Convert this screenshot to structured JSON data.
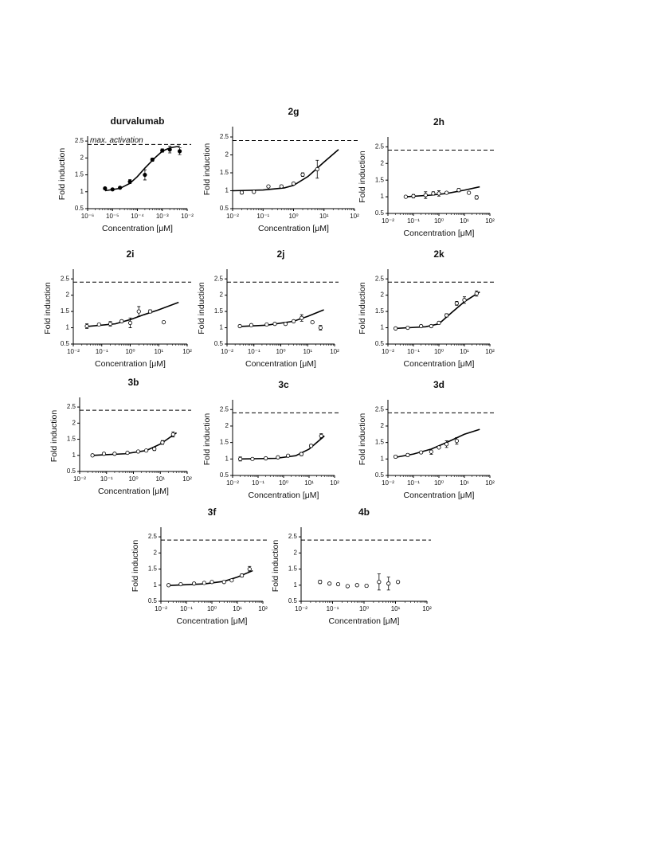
{
  "chart_data": [
    {
      "type": "scatter",
      "title": "durvalumab",
      "x_label": "Concentration [μM]",
      "y_label": "Fold induction",
      "annotation": "max. activation",
      "x_log": true,
      "marker_fill": "filled",
      "reference_line": 2.4,
      "xlim": [
        1e-06,
        0.01
      ],
      "xticks": [
        {
          "value": 1e-06,
          "label": "10⁻⁶"
        },
        {
          "value": 1e-05,
          "label": "10⁻⁵"
        },
        {
          "value": 0.0001,
          "label": "10⁻⁴"
        },
        {
          "value": 0.001,
          "label": "10⁻³"
        },
        {
          "value": 0.01,
          "label": "10⁻²"
        }
      ],
      "ylim": [
        0.5,
        2.55
      ],
      "yticks": [
        0.5,
        1,
        1.5,
        2,
        2.5
      ],
      "points": {
        "x": [
          5e-06,
          1e-05,
          2e-05,
          5e-05,
          0.0002,
          0.0004,
          0.001,
          0.002,
          0.005
        ],
        "y": [
          1.1,
          1.07,
          1.12,
          1.3,
          1.5,
          1.95,
          2.22,
          2.25,
          2.2
        ],
        "err": [
          0.03,
          0.02,
          0.03,
          0.06,
          0.15,
          0.05,
          0.05,
          0.1,
          0.1
        ]
      },
      "fit": {
        "x": [
          5e-06,
          2e-05,
          5e-05,
          0.0001,
          0.0002,
          0.0005,
          0.001,
          0.002,
          0.005
        ],
        "y": [
          1.03,
          1.1,
          1.25,
          1.45,
          1.7,
          2.0,
          2.2,
          2.3,
          2.35
        ]
      }
    },
    {
      "type": "scatter",
      "title": "2g",
      "x_label": "Concentration [μM]",
      "y_label": "Fold induction",
      "x_log": true,
      "marker_fill": "open",
      "reference_line": 2.4,
      "xlim": [
        0.01,
        100
      ],
      "xticks": [
        {
          "value": 0.01,
          "label": "10⁻²"
        },
        {
          "value": 0.1,
          "label": "10⁻¹"
        },
        {
          "value": 1,
          "label": "10⁰"
        },
        {
          "value": 10,
          "label": "10¹"
        },
        {
          "value": 100,
          "label": "10²"
        }
      ],
      "ylim": [
        0.5,
        2.7
      ],
      "yticks": [
        0.5,
        1,
        1.5,
        2,
        2.5
      ],
      "points": {
        "x": [
          0.02,
          0.05,
          0.15,
          0.4,
          1,
          2,
          6
        ],
        "y": [
          0.95,
          0.97,
          1.12,
          1.12,
          1.2,
          1.45,
          1.6
        ],
        "err": [
          0.04,
          null,
          null,
          0.04,
          null,
          0.05,
          0.25
        ]
      },
      "fit": {
        "x": [
          0.01,
          0.1,
          0.5,
          1,
          3,
          10,
          30
        ],
        "y": [
          1.0,
          1.02,
          1.08,
          1.15,
          1.4,
          1.8,
          2.15
        ]
      }
    },
    {
      "type": "scatter",
      "title": "2h",
      "x_label": "Concentration [μM]",
      "y_label": "Fold induction",
      "x_log": true,
      "marker_fill": "open",
      "reference_line": 2.4,
      "xlim": [
        0.01,
        100
      ],
      "xticks": [
        {
          "value": 0.01,
          "label": "10⁻²"
        },
        {
          "value": 0.1,
          "label": "10⁻¹"
        },
        {
          "value": 1,
          "label": "10⁰"
        },
        {
          "value": 10,
          "label": "10¹"
        },
        {
          "value": 100,
          "label": "10²"
        }
      ],
      "ylim": [
        0.5,
        2.7
      ],
      "yticks": [
        0.5,
        1,
        1.5,
        2,
        2.5
      ],
      "points": {
        "x": [
          0.05,
          0.1,
          0.3,
          0.6,
          1,
          2,
          6,
          15,
          30
        ],
        "y": [
          1.0,
          1.02,
          1.05,
          1.1,
          1.1,
          1.12,
          1.2,
          1.12,
          0.98
        ],
        "err": [
          null,
          0.05,
          0.1,
          0.05,
          0.08,
          null,
          0.05,
          null,
          0.05
        ]
      },
      "fit": {
        "x": [
          0.05,
          0.5,
          2,
          10,
          40
        ],
        "y": [
          1.0,
          1.05,
          1.1,
          1.2,
          1.3
        ]
      }
    },
    {
      "type": "scatter",
      "title": "2i",
      "x_label": "Concentration [μM]",
      "y_label": "Fold induction",
      "x_log": true,
      "marker_fill": "open",
      "reference_line": 2.4,
      "xlim": [
        0.01,
        100
      ],
      "xticks": [
        {
          "value": 0.01,
          "label": "10⁻²"
        },
        {
          "value": 0.1,
          "label": "10⁻¹"
        },
        {
          "value": 1,
          "label": "10⁰"
        },
        {
          "value": 10,
          "label": "10¹"
        },
        {
          "value": 100,
          "label": "10²"
        }
      ],
      "ylim": [
        0.5,
        2.7
      ],
      "yticks": [
        0.5,
        1,
        1.5,
        2,
        2.5
      ],
      "points": {
        "x": [
          0.03,
          0.08,
          0.2,
          0.5,
          1,
          2,
          5,
          15
        ],
        "y": [
          1.05,
          1.1,
          1.12,
          1.2,
          1.15,
          1.5,
          1.5,
          1.17
        ],
        "err": [
          0.07,
          null,
          0.07,
          0.04,
          0.15,
          0.15,
          0.05,
          null
        ]
      },
      "fit": {
        "x": [
          0.03,
          0.3,
          1,
          3,
          10,
          50
        ],
        "y": [
          1.04,
          1.12,
          1.25,
          1.4,
          1.55,
          1.78
        ]
      }
    },
    {
      "type": "scatter",
      "title": "2j",
      "x_label": "Concentration [μM]",
      "y_label": "Fold induction",
      "x_log": true,
      "marker_fill": "open",
      "reference_line": 2.4,
      "xlim": [
        0.01,
        100
      ],
      "xticks": [
        {
          "value": 0.01,
          "label": "10⁻²"
        },
        {
          "value": 0.1,
          "label": "10⁻¹"
        },
        {
          "value": 1,
          "label": "10⁰"
        },
        {
          "value": 10,
          "label": "10¹"
        },
        {
          "value": 100,
          "label": "10²"
        }
      ],
      "ylim": [
        0.5,
        2.7
      ],
      "yticks": [
        0.5,
        1,
        1.5,
        2,
        2.5
      ],
      "points": {
        "x": [
          0.03,
          0.08,
          0.3,
          0.6,
          1.5,
          3,
          6,
          15,
          30
        ],
        "y": [
          1.05,
          1.08,
          1.1,
          1.12,
          1.12,
          1.2,
          1.3,
          1.17,
          1.0
        ],
        "err": [
          null,
          null,
          null,
          null,
          0.04,
          null,
          0.1,
          null,
          0.07
        ]
      },
      "fit": {
        "x": [
          0.03,
          0.3,
          3,
          10,
          40
        ],
        "y": [
          1.04,
          1.08,
          1.2,
          1.35,
          1.55
        ]
      }
    },
    {
      "type": "scatter",
      "title": "2k",
      "x_label": "Concentration [μM]",
      "y_label": "Fold induction",
      "x_log": true,
      "marker_fill": "open",
      "reference_line": 2.4,
      "xlim": [
        0.01,
        100
      ],
      "xticks": [
        {
          "value": 0.01,
          "label": "10⁻²"
        },
        {
          "value": 0.1,
          "label": "10⁻¹"
        },
        {
          "value": 1,
          "label": "10⁰"
        },
        {
          "value": 10,
          "label": "10¹"
        },
        {
          "value": 100,
          "label": "10²"
        }
      ],
      "ylim": [
        0.5,
        2.7
      ],
      "yticks": [
        0.5,
        1,
        1.5,
        2,
        2.5
      ],
      "points": {
        "x": [
          0.02,
          0.06,
          0.2,
          0.5,
          1,
          2,
          5,
          10,
          30
        ],
        "y": [
          0.98,
          1.0,
          1.05,
          1.05,
          1.15,
          1.38,
          1.75,
          1.85,
          2.05
        ],
        "err": [
          null,
          null,
          null,
          null,
          0.04,
          0.05,
          0.06,
          0.1,
          0.08
        ]
      },
      "fit": {
        "x": [
          0.02,
          0.3,
          1,
          3,
          10,
          40
        ],
        "y": [
          0.98,
          1.03,
          1.12,
          1.45,
          1.8,
          2.1
        ]
      }
    },
    {
      "type": "scatter",
      "title": "3b",
      "x_label": "Concentration [μM]",
      "y_label": "Fold induction",
      "x_log": true,
      "marker_fill": "open",
      "reference_line": 2.4,
      "xlim": [
        0.01,
        100
      ],
      "xticks": [
        {
          "value": 0.01,
          "label": "10⁻²"
        },
        {
          "value": 0.1,
          "label": "10⁻¹"
        },
        {
          "value": 1,
          "label": "10⁰"
        },
        {
          "value": 10,
          "label": "10¹"
        },
        {
          "value": 100,
          "label": "10²"
        }
      ],
      "ylim": [
        0.5,
        2.7
      ],
      "yticks": [
        0.5,
        1,
        1.5,
        2,
        2.5
      ],
      "points": {
        "x": [
          0.03,
          0.08,
          0.2,
          0.6,
          1.5,
          3,
          6,
          12,
          30
        ],
        "y": [
          1.0,
          1.05,
          1.05,
          1.08,
          1.12,
          1.15,
          1.2,
          1.4,
          1.65
        ],
        "err": [
          null,
          null,
          null,
          null,
          null,
          null,
          0.05,
          0.06,
          0.08
        ]
      },
      "fit": {
        "x": [
          0.03,
          0.5,
          3,
          10,
          40
        ],
        "y": [
          1.0,
          1.05,
          1.15,
          1.35,
          1.7
        ]
      }
    },
    {
      "type": "scatter",
      "title": "3c",
      "x_label": "Concentration [μM]",
      "y_label": "Fold induction",
      "x_log": true,
      "marker_fill": "open",
      "reference_line": 2.4,
      "xlim": [
        0.01,
        100
      ],
      "xticks": [
        {
          "value": 0.01,
          "label": "10⁻²"
        },
        {
          "value": 0.1,
          "label": "10⁻¹"
        },
        {
          "value": 1,
          "label": "10⁰"
        },
        {
          "value": 10,
          "label": "10¹"
        },
        {
          "value": 100,
          "label": "10²"
        }
      ],
      "ylim": [
        0.5,
        2.7
      ],
      "yticks": [
        0.5,
        1,
        1.5,
        2,
        2.5
      ],
      "points": {
        "x": [
          0.02,
          0.06,
          0.2,
          0.6,
          1.5,
          5,
          12,
          30
        ],
        "y": [
          1.0,
          1.0,
          1.02,
          1.05,
          1.1,
          1.15,
          1.4,
          1.7
        ],
        "err": [
          0.06,
          null,
          null,
          null,
          null,
          0.05,
          0.04,
          0.07
        ]
      },
      "fit": {
        "x": [
          0.02,
          0.5,
          3,
          10,
          40
        ],
        "y": [
          1.0,
          1.02,
          1.1,
          1.3,
          1.7
        ]
      }
    },
    {
      "type": "scatter",
      "title": "3d",
      "x_label": "Concentration [μM]",
      "y_label": "Fold induction",
      "x_log": true,
      "marker_fill": "open",
      "reference_line": 2.4,
      "xlim": [
        0.01,
        100
      ],
      "xticks": [
        {
          "value": 0.01,
          "label": "10⁻²"
        },
        {
          "value": 0.1,
          "label": "10⁻¹"
        },
        {
          "value": 1,
          "label": "10⁰"
        },
        {
          "value": 10,
          "label": "10¹"
        },
        {
          "value": 100,
          "label": "10²"
        }
      ],
      "ylim": [
        0.5,
        2.7
      ],
      "yticks": [
        0.5,
        1,
        1.5,
        2,
        2.5
      ],
      "points": {
        "x": [
          0.02,
          0.06,
          0.2,
          0.5,
          1,
          2,
          5
        ],
        "y": [
          1.07,
          1.12,
          1.2,
          1.22,
          1.35,
          1.45,
          1.55
        ],
        "err": [
          0.04,
          0.04,
          null,
          0.08,
          null,
          0.1,
          0.1
        ]
      },
      "fit": {
        "x": [
          0.02,
          0.1,
          0.5,
          2,
          10,
          40
        ],
        "y": [
          1.05,
          1.15,
          1.3,
          1.5,
          1.75,
          1.9
        ]
      }
    },
    {
      "type": "scatter",
      "title": "3f",
      "x_label": "Concentration [μM]",
      "y_label": "Fold induction",
      "x_log": true,
      "marker_fill": "open",
      "reference_line": 2.4,
      "xlim": [
        0.01,
        100
      ],
      "xticks": [
        {
          "value": 0.01,
          "label": "10⁻²"
        },
        {
          "value": 0.1,
          "label": "10⁻¹"
        },
        {
          "value": 1,
          "label": "10⁰"
        },
        {
          "value": 10,
          "label": "10¹"
        },
        {
          "value": 100,
          "label": "10²"
        }
      ],
      "ylim": [
        0.5,
        2.7
      ],
      "yticks": [
        0.5,
        1,
        1.5,
        2,
        2.5
      ],
      "points": {
        "x": [
          0.02,
          0.06,
          0.2,
          0.5,
          1,
          3,
          6,
          15,
          30
        ],
        "y": [
          1.0,
          1.03,
          1.05,
          1.07,
          1.1,
          1.1,
          1.15,
          1.3,
          1.5
        ],
        "err": [
          null,
          null,
          null,
          null,
          null,
          null,
          null,
          0.05,
          0.08
        ]
      },
      "fit": {
        "x": [
          0.02,
          0.5,
          3,
          10,
          40
        ],
        "y": [
          0.99,
          1.04,
          1.12,
          1.25,
          1.45
        ]
      }
    },
    {
      "type": "scatter",
      "title": "4b",
      "x_label": "Concentration [μM]",
      "y_label": "Fold induction",
      "x_log": true,
      "marker_fill": "open",
      "reference_line": 2.4,
      "xlim": [
        0.01,
        100
      ],
      "xticks": [
        {
          "value": 0.01,
          "label": "10⁻²"
        },
        {
          "value": 0.1,
          "label": "10⁻¹"
        },
        {
          "value": 1,
          "label": "10⁰"
        },
        {
          "value": 10,
          "label": "10¹"
        },
        {
          "value": 100,
          "label": "10²"
        }
      ],
      "ylim": [
        0.5,
        2.7
      ],
      "yticks": [
        0.5,
        1,
        1.5,
        2,
        2.5
      ],
      "points": {
        "x": [
          0.04,
          0.08,
          0.15,
          0.3,
          0.6,
          1.2,
          3,
          6,
          12
        ],
        "y": [
          1.1,
          1.05,
          1.03,
          0.97,
          1.0,
          0.98,
          1.1,
          1.05,
          1.1
        ],
        "err": [
          0.05,
          null,
          null,
          null,
          null,
          0.04,
          0.25,
          0.2,
          null
        ]
      }
    }
  ]
}
